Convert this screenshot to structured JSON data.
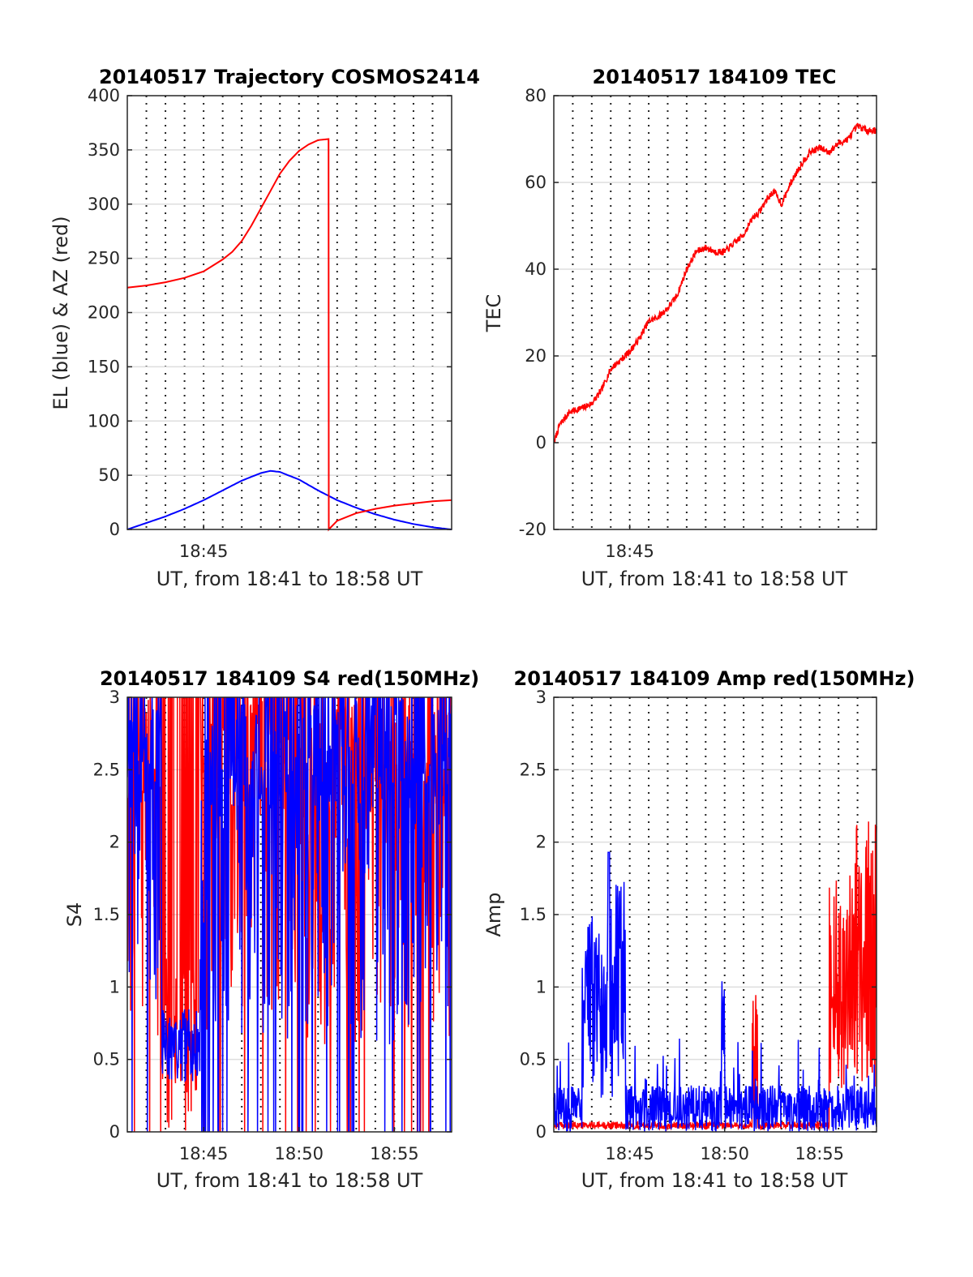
{
  "charts": [
    {
      "id": "traj",
      "title": "20140517 Trajectory COSMOS2414",
      "xlabel": "UT, from 18:41 to 18:58 UT",
      "ylabel": "EL (blue) & AZ (red)",
      "ylim": [
        0,
        400
      ],
      "yticks": [
        "0",
        "50",
        "100",
        "150",
        "200",
        "250",
        "300",
        "350",
        "400"
      ],
      "xticks": [
        "18:45"
      ]
    },
    {
      "id": "tec",
      "title": "20140517 184109 TEC",
      "xlabel": "UT, from 18:41 to 18:58 UT",
      "ylabel": "TEC",
      "ylim": [
        -20,
        80
      ],
      "yticks": [
        "-20",
        "0",
        "20",
        "40",
        "60",
        "80"
      ],
      "xticks": [
        "18:45"
      ]
    },
    {
      "id": "s4",
      "title": "20140517 184109 S4 red(150MHz)",
      "xlabel": "UT, from 18:41 to 18:58 UT",
      "ylabel": "S4",
      "ylim": [
        0,
        3
      ],
      "yticks": [
        "0",
        "0.5",
        "1",
        "1.5",
        "2",
        "2.5",
        "3"
      ],
      "xticks": [
        "18:45",
        "18:50",
        "18:55"
      ]
    },
    {
      "id": "amp",
      "title": "20140517 184109 Amp red(150MHz)",
      "xlabel": "UT, from 18:41 to 18:58 UT",
      "ylabel": "Amp",
      "ylim": [
        0,
        3
      ],
      "yticks": [
        "0",
        "0.5",
        "1",
        "1.5",
        "2",
        "2.5",
        "3"
      ],
      "xticks": [
        "18:45",
        "18:50",
        "18:55"
      ]
    }
  ],
  "chart_data": [
    {
      "type": "line",
      "title": "20140517 Trajectory COSMOS2414",
      "xlabel": "UT, from 18:41 to 18:58 UT",
      "ylabel": "EL (blue) & AZ (red)",
      "xlim_minutes": [
        0,
        17
      ],
      "ylim": [
        0,
        400
      ],
      "grid": "dotted vertical every minute, solid horizontal",
      "series": [
        {
          "color": "#0000ff",
          "x": [
            0,
            1,
            2,
            3,
            4,
            5,
            6,
            7,
            7.5,
            8,
            9,
            10,
            11,
            12,
            13,
            14,
            15,
            16,
            17
          ],
          "y": [
            0,
            6,
            12,
            19,
            27,
            36,
            45,
            52,
            54,
            53,
            46,
            36,
            27,
            20,
            14,
            9,
            5,
            2,
            0
          ]
        },
        {
          "color": "#ff0000",
          "x": [
            0,
            1,
            2,
            3,
            4,
            5,
            5.5,
            6,
            6.5,
            7,
            7.5,
            8,
            8.5,
            9,
            9.5,
            10,
            10.55,
            10.56,
            11,
            12,
            13,
            14,
            15,
            16,
            17
          ],
          "y": [
            223,
            225,
            228,
            232,
            238,
            249,
            256,
            266,
            280,
            296,
            312,
            328,
            340,
            349,
            355,
            359,
            360,
            0,
            8,
            15,
            19,
            22,
            24,
            26,
            27
          ]
        }
      ]
    },
    {
      "type": "line",
      "title": "20140517 184109 TEC",
      "xlabel": "UT, from 18:41 to 18:58 UT",
      "ylabel": "TEC",
      "xlim_minutes": [
        0,
        17
      ],
      "ylim": [
        -20,
        80
      ],
      "series": [
        {
          "color": "#ff0000",
          "x": [
            0,
            0.3,
            0.8,
            1.5,
            2,
            2.5,
            3,
            3.5,
            4,
            4.5,
            5,
            5.5,
            6,
            6.5,
            7,
            7.5,
            8,
            8.5,
            9,
            9.5,
            10,
            10.5,
            10.8,
            11.2,
            11.6,
            12,
            12.5,
            13,
            13.5,
            14,
            14.5,
            15,
            15.5,
            16,
            16.5,
            17
          ],
          "y": [
            0,
            4,
            7,
            8,
            9,
            12,
            17,
            19,
            21,
            24,
            28,
            29,
            31,
            34,
            40,
            44,
            45,
            44,
            44,
            46,
            48,
            52,
            53,
            56,
            58,
            55,
            60,
            64,
            67,
            68,
            67,
            69,
            70,
            73,
            72,
            72
          ]
        }
      ]
    },
    {
      "type": "line",
      "title": "20140517 184109 S4 red(150MHz)",
      "xlabel": "UT, from 18:41 to 18:58 UT",
      "ylabel": "S4",
      "xlim_minutes": [
        0,
        17
      ],
      "ylim": [
        0,
        3
      ],
      "series": [
        {
          "color": "#ff0000",
          "x_range_minutes": [
            0,
            17
          ],
          "typical_range": [
            0,
            3
          ],
          "dense_low_segment_minutes": [
            1.8,
            3.8
          ],
          "low_segment_level": 0.6
        },
        {
          "color": "#0000ff",
          "x_range_minutes": [
            0,
            17
          ],
          "typical_range": [
            0.4,
            3
          ],
          "dense_low_segment_minutes": [
            1.8,
            3.8
          ],
          "low_segment_level": 0.6
        }
      ]
    },
    {
      "type": "line",
      "title": "20140517 184109 Amp red(150MHz)",
      "xlabel": "UT, from 18:41 to 18:58 UT",
      "ylabel": "Amp",
      "xlim_minutes": [
        0,
        17
      ],
      "ylim": [
        0,
        3
      ],
      "series": [
        {
          "color": "#ff0000",
          "x_range_minutes": [
            0,
            17
          ],
          "burst_minutes": [
            14.5,
            17
          ],
          "burst_peak": 2.15
        },
        {
          "color": "#0000ff",
          "x_range_minutes": [
            0,
            17
          ],
          "burst_minutes": [
            1.5,
            3.8
          ],
          "burst_peak": 1.93,
          "baseline": 0.2,
          "spike_at_minutes": 8.9,
          "spike_peak": 1.12
        }
      ]
    }
  ]
}
